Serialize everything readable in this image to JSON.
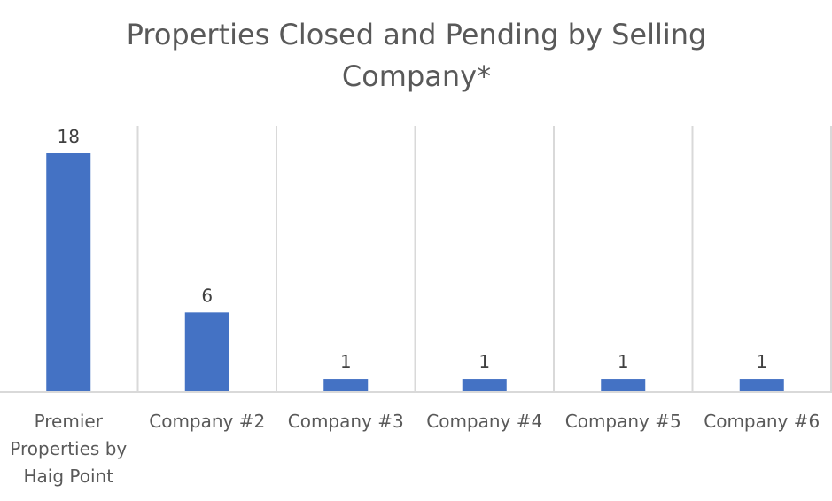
{
  "chart_data": {
    "type": "bar",
    "title": "Properties Closed and Pending by Selling Company*",
    "categories": [
      "Premier Properties by Haig Point",
      "Company #2",
      "Company #3",
      "Company #4",
      "Company #5",
      "Company #6"
    ],
    "values": [
      18,
      6,
      1,
      1,
      1,
      1
    ],
    "color": "#4472c4",
    "data_labels": true
  }
}
